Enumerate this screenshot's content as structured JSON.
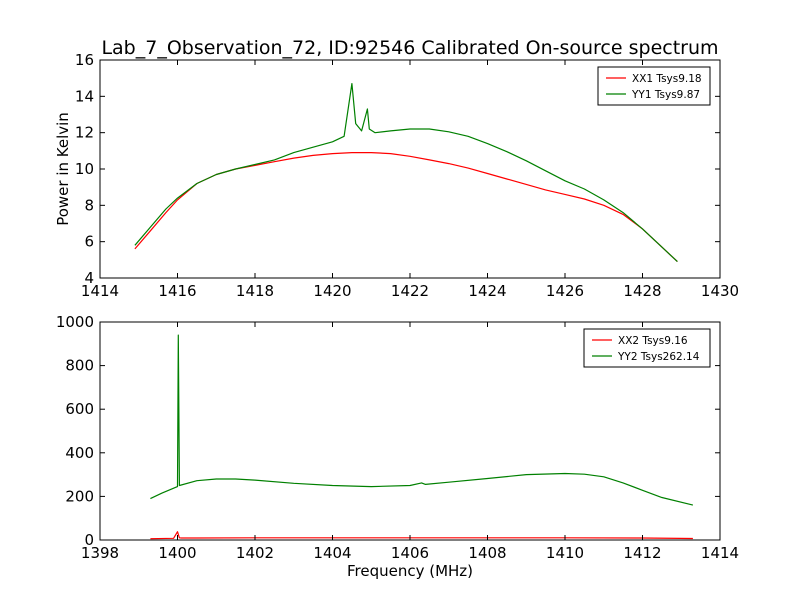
{
  "figure": {
    "title": "Lab_7_Observation_72, ID:92546 Calibrated On-source spectrum",
    "xlabel": "Frequency (MHz)",
    "ylabel": "Power in Kelvin"
  },
  "colors": {
    "red": "#ff0000",
    "green": "#008000"
  },
  "chart_data": [
    {
      "type": "line",
      "title": "Lab_7_Observation_72, ID:92546 Calibrated On-source spectrum",
      "xlabel": "",
      "ylabel": "Power in Kelvin",
      "xlim": [
        1414,
        1430
      ],
      "ylim": [
        4,
        16
      ],
      "xticks": [
        "1414",
        "1416",
        "1418",
        "1420",
        "1422",
        "1424",
        "1426",
        "1428",
        "1430"
      ],
      "yticks": [
        "4",
        "6",
        "8",
        "10",
        "12",
        "14",
        "16"
      ],
      "grid": false,
      "legend": "top-right",
      "series": [
        {
          "name": "XX1 Tsys9.18",
          "color": "#ff0000",
          "x": [
            1414.9,
            1415.3,
            1415.7,
            1416.0,
            1416.5,
            1417.0,
            1417.5,
            1418.0,
            1418.5,
            1419.0,
            1419.5,
            1420.0,
            1420.5,
            1421.0,
            1421.5,
            1422.0,
            1422.5,
            1423.0,
            1423.5,
            1424.0,
            1424.5,
            1425.0,
            1425.5,
            1426.0,
            1426.5,
            1427.0,
            1427.5,
            1428.0,
            1428.5,
            1428.9
          ],
          "y": [
            5.6,
            6.6,
            7.6,
            8.3,
            9.2,
            9.7,
            10.0,
            10.2,
            10.4,
            10.6,
            10.75,
            10.85,
            10.9,
            10.9,
            10.85,
            10.7,
            10.5,
            10.3,
            10.05,
            9.75,
            9.45,
            9.15,
            8.85,
            8.6,
            8.35,
            8.0,
            7.5,
            6.7,
            5.7,
            4.9
          ]
        },
        {
          "name": "YY1 Tsys9.87",
          "color": "#008000",
          "x": [
            1414.9,
            1415.3,
            1415.7,
            1416.0,
            1416.5,
            1417.0,
            1417.5,
            1418.0,
            1418.5,
            1419.0,
            1419.5,
            1420.0,
            1420.3,
            1420.5,
            1420.6,
            1420.75,
            1420.9,
            1420.95,
            1421.1,
            1421.5,
            1422.0,
            1422.5,
            1423.0,
            1423.5,
            1424.0,
            1424.5,
            1425.0,
            1425.5,
            1426.0,
            1426.5,
            1427.0,
            1427.5,
            1428.0,
            1428.5,
            1428.9
          ],
          "y": [
            5.8,
            6.8,
            7.8,
            8.4,
            9.2,
            9.7,
            10.0,
            10.25,
            10.5,
            10.9,
            11.2,
            11.5,
            11.8,
            14.7,
            12.5,
            12.1,
            13.3,
            12.2,
            12.0,
            12.1,
            12.2,
            12.2,
            12.05,
            11.8,
            11.4,
            10.95,
            10.45,
            9.9,
            9.35,
            8.9,
            8.3,
            7.6,
            6.7,
            5.7,
            4.9
          ]
        }
      ]
    },
    {
      "type": "line",
      "title": "",
      "xlabel": "Frequency (MHz)",
      "ylabel": "",
      "xlim": [
        1398,
        1414
      ],
      "ylim": [
        0,
        1000
      ],
      "xticks": [
        "1398",
        "1400",
        "1402",
        "1404",
        "1406",
        "1408",
        "1410",
        "1412",
        "1414"
      ],
      "yticks": [
        "0",
        "200",
        "400",
        "600",
        "800",
        "1000"
      ],
      "grid": false,
      "legend": "top-right",
      "series": [
        {
          "name": "XX2 Tsys9.16",
          "color": "#ff0000",
          "x": [
            1399.3,
            1399.9,
            1400.0,
            1400.05,
            1400.1,
            1400.5,
            1402,
            1404,
            1406,
            1408,
            1410,
            1412,
            1413.3
          ],
          "y": [
            6,
            8,
            38,
            10,
            9,
            9,
            10,
            10,
            10,
            10,
            10,
            9,
            7
          ]
        },
        {
          "name": "YY2 Tsys262.14",
          "color": "#008000",
          "x": [
            1399.3,
            1399.6,
            1400.0,
            1400.02,
            1400.05,
            1400.5,
            1401.0,
            1401.5,
            1402.0,
            1403.0,
            1404.0,
            1405.0,
            1406.0,
            1406.3,
            1406.4,
            1407.0,
            1408.0,
            1409.0,
            1410.0,
            1410.5,
            1411.0,
            1411.5,
            1412.0,
            1412.5,
            1413.3
          ],
          "y": [
            190,
            215,
            245,
            940,
            250,
            272,
            280,
            280,
            275,
            260,
            250,
            245,
            250,
            262,
            255,
            265,
            282,
            300,
            305,
            302,
            290,
            262,
            228,
            195,
            160
          ]
        }
      ]
    }
  ]
}
